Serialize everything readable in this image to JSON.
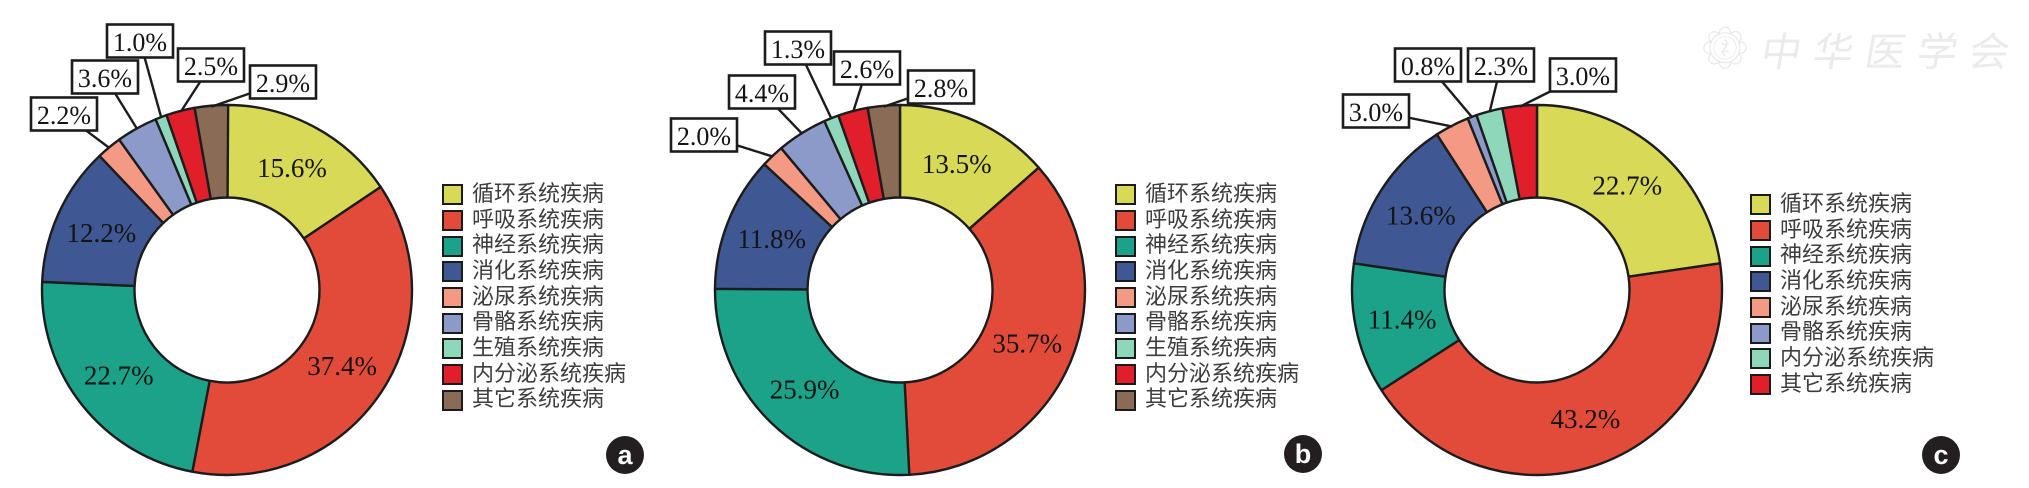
{
  "watermark": {
    "text": "中华医学会",
    "icon": "cma-seal-icon"
  },
  "chart_data": [
    {
      "type": "donut",
      "badge": "a",
      "title": "",
      "categories": [
        "循环系统疾病",
        "呼吸系统疾病",
        "神经系统疾病",
        "消化系统疾病",
        "泌尿系统疾病",
        "骨骼系统疾病",
        "生殖系统疾病",
        "内分泌系统疾病",
        "其它系统疾病"
      ],
      "values": [
        15.6,
        37.4,
        22.7,
        12.2,
        2.2,
        3.6,
        1.0,
        2.5,
        2.9
      ],
      "labels": [
        "15.6%",
        "37.4%",
        "22.7%",
        "12.2%",
        "2.2%",
        "3.6%",
        "1.0%",
        "2.5%",
        "2.9%"
      ],
      "colors": [
        "#d8d957",
        "#e24b3a",
        "#1ba288",
        "#3f5793",
        "#f49a84",
        "#8b9ac8",
        "#8ed7ba",
        "#e01f2b",
        "#8a6b55"
      ],
      "legend_position": "right",
      "start_angle": "12-oclock",
      "direction": "clockwise",
      "hole_ratio": 0.5,
      "small_slice_callout_threshold": 10
    },
    {
      "type": "donut",
      "badge": "b",
      "title": "",
      "categories": [
        "循环系统疾病",
        "呼吸系统疾病",
        "神经系统疾病",
        "消化系统疾病",
        "泌尿系统疾病",
        "骨骼系统疾病",
        "生殖系统疾病",
        "内分泌系统疾病",
        "其它系统疾病"
      ],
      "values": [
        13.5,
        35.7,
        25.9,
        11.8,
        2.0,
        4.4,
        1.3,
        2.6,
        2.8
      ],
      "labels": [
        "13.5%",
        "35.7%",
        "25.9%",
        "11.8%",
        "2.0%",
        "4.4%",
        "1.3%",
        "2.6%",
        "2.8%"
      ],
      "colors": [
        "#d8d957",
        "#e24b3a",
        "#1ba288",
        "#3f5793",
        "#f49a84",
        "#8b9ac8",
        "#8ed7ba",
        "#e01f2b",
        "#8a6b55"
      ],
      "legend_position": "right",
      "start_angle": "12-oclock",
      "direction": "clockwise",
      "hole_ratio": 0.5,
      "small_slice_callout_threshold": 10
    },
    {
      "type": "donut",
      "badge": "c",
      "title": "",
      "categories": [
        "循环系统疾病",
        "呼吸系统疾病",
        "神经系统疾病",
        "消化系统疾病",
        "泌尿系统疾病",
        "骨骼系统疾病",
        "内分泌系统疾病",
        "其它系统疾病"
      ],
      "values": [
        22.7,
        43.2,
        11.4,
        13.6,
        3.0,
        0.8,
        2.3,
        3.0
      ],
      "labels": [
        "22.7%",
        "43.2%",
        "11.4%",
        "13.6%",
        "3.0%",
        "0.8%",
        "2.3%",
        "3.0%"
      ],
      "colors": [
        "#d8d957",
        "#e24b3a",
        "#1ba288",
        "#3f5793",
        "#f49a84",
        "#8b9ac8",
        "#8ed7ba",
        "#e01f2b"
      ],
      "legend_position": "right",
      "start_angle": "12-oclock",
      "direction": "clockwise",
      "hole_ratio": 0.5,
      "small_slice_callout_threshold": 10
    }
  ]
}
